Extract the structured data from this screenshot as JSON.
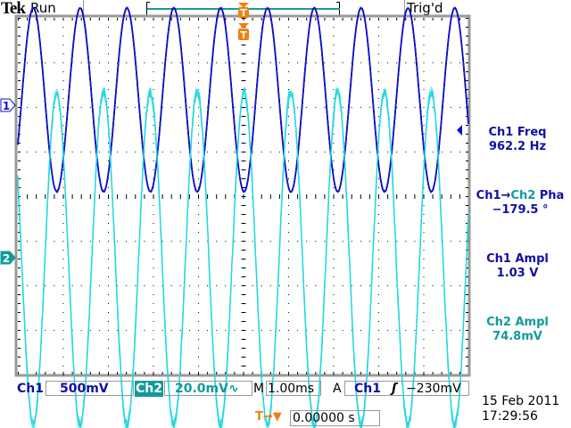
{
  "header": {
    "brand": "Tek",
    "run_state": "Run",
    "trigger_status": "Trig'd",
    "trigger_marker": "T"
  },
  "channels": [
    {
      "label": "1",
      "color": "#1010c8"
    },
    {
      "label": "2",
      "color": "#20d8e0"
    }
  ],
  "measurements": [
    {
      "label": "Ch1 Freq",
      "value": "962.2 Hz"
    },
    {
      "label_a": "Ch1",
      "arrow": "→",
      "label_b": "Ch2",
      "label_c": " Pha",
      "value": "−179.5 °"
    },
    {
      "label": "Ch1 Ampl",
      "value": "1.03 V"
    },
    {
      "label": "Ch2 Ampl",
      "value": "74.8mV"
    }
  ],
  "footer": {
    "ch1_label": "Ch1",
    "ch1_scale": "500mV",
    "ch2_label": "Ch2",
    "ch2_scale": "20.0mV∿",
    "timebase_label": "M",
    "timebase": "1.00ms",
    "trigger_mode": "A",
    "trigger_source": "Ch1",
    "trigger_slope": "ʃ",
    "trigger_level": "−230mV",
    "trigger_offset_icon": "T→▼",
    "trigger_offset": "0.00000 s",
    "date": "15 Feb  2011",
    "time": "17:29:56"
  },
  "colors": {
    "ch1": "#1010c8",
    "ch2": "#20d8e0",
    "trigger": "#f08010",
    "graticule": "#000000"
  },
  "waveforms": {
    "ch1": {
      "frequency_hz": 962.2,
      "amplitude_v": 1.03,
      "volts_per_div": 0.5
    },
    "ch2": {
      "frequency_hz": 962.2,
      "amplitude_v": 0.0748,
      "volts_per_div": 0.02,
      "phase_deg": -179.5
    },
    "time_per_div_s": 0.001
  }
}
